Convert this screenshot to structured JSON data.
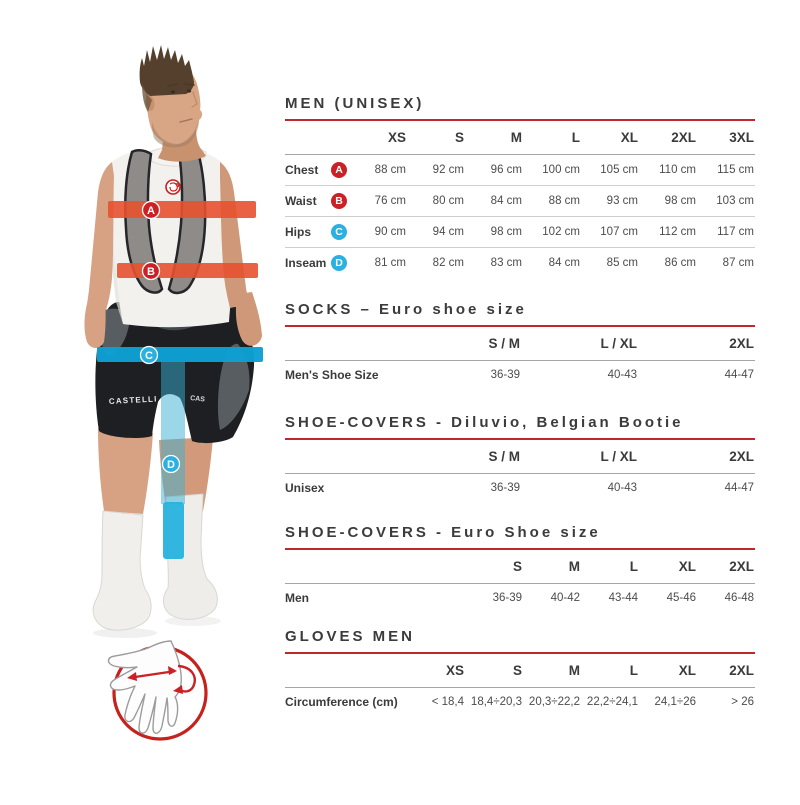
{
  "colors": {
    "accent_red_rule": "#c1272d",
    "badge_red": "#cb2026",
    "badge_blue": "#2bb0e2",
    "band_orange": "#e7512f",
    "band_blue": "#0d9fd4",
    "title_text": "#3b3b3b",
    "value_text": "#4c4c4c"
  },
  "figure": {
    "description": "man wearing bib shorts with measurement bands",
    "brand_text": "CASTELLI",
    "brand_text_partial": "CAS",
    "markers": [
      {
        "label": "A",
        "color": "#cb2026",
        "measure": "Chest"
      },
      {
        "label": "B",
        "color": "#cb2026",
        "measure": "Waist"
      },
      {
        "label": "C",
        "color": "#2bb0e2",
        "measure": "Hips"
      },
      {
        "label": "D",
        "color": "#2bb0e2",
        "measure": "Inseam"
      }
    ],
    "hand_diagram": "palm-circumference-measure"
  },
  "sections": [
    {
      "title": "MEN (UNISEX)",
      "columns": [
        "XS",
        "S",
        "M",
        "L",
        "XL",
        "2XL",
        "3XL"
      ],
      "rows": [
        {
          "label": "Chest",
          "badge": "A",
          "badge_color": "#cb2026",
          "values": [
            "88 cm",
            "92 cm",
            "96 cm",
            "100 cm",
            "105 cm",
            "110 cm",
            "115 cm"
          ]
        },
        {
          "label": "Waist",
          "badge": "B",
          "badge_color": "#cb2026",
          "values": [
            "76 cm",
            "80 cm",
            "84 cm",
            "88 cm",
            "93 cm",
            "98 cm",
            "103 cm"
          ]
        },
        {
          "label": "Hips",
          "badge": "C",
          "badge_color": "#2bb0e2",
          "values": [
            "90 cm",
            "94 cm",
            "98 cm",
            "102 cm",
            "107 cm",
            "112 cm",
            "117 cm"
          ]
        },
        {
          "label": "Inseam",
          "badge": "D",
          "badge_color": "#2bb0e2",
          "values": [
            "81 cm",
            "82 cm",
            "83 cm",
            "84 cm",
            "85 cm",
            "86 cm",
            "87 cm"
          ]
        }
      ]
    },
    {
      "title": "SOCKS – Euro shoe size",
      "columns": [
        "S / M",
        "L / XL",
        "2XL"
      ],
      "rows": [
        {
          "label": "Men's Shoe Size",
          "values": [
            "36-39",
            "40-43",
            "44-47"
          ]
        }
      ]
    },
    {
      "title": "SHOE-COVERS - Diluvio, Belgian Bootie",
      "columns": [
        "S / M",
        "L / XL",
        "2XL"
      ],
      "rows": [
        {
          "label": "Unisex",
          "values": [
            "36-39",
            "40-43",
            "44-47"
          ]
        }
      ]
    },
    {
      "title": "SHOE-COVERS - Euro Shoe size",
      "columns": [
        "S",
        "M",
        "L",
        "XL",
        "2XL"
      ],
      "rows": [
        {
          "label": "Men",
          "values": [
            "36-39",
            "40-42",
            "43-44",
            "45-46",
            "46-48"
          ]
        }
      ]
    },
    {
      "title": "GLOVES MEN",
      "columns": [
        "XS",
        "S",
        "M",
        "L",
        "XL",
        "2XL"
      ],
      "rows": [
        {
          "label": "Circumference (cm)",
          "values": [
            "< 18,4",
            "18,4÷20,3",
            "20,3÷22,2",
            "22,2÷24,1",
            "24,1÷26",
            "> 26"
          ]
        }
      ]
    }
  ]
}
